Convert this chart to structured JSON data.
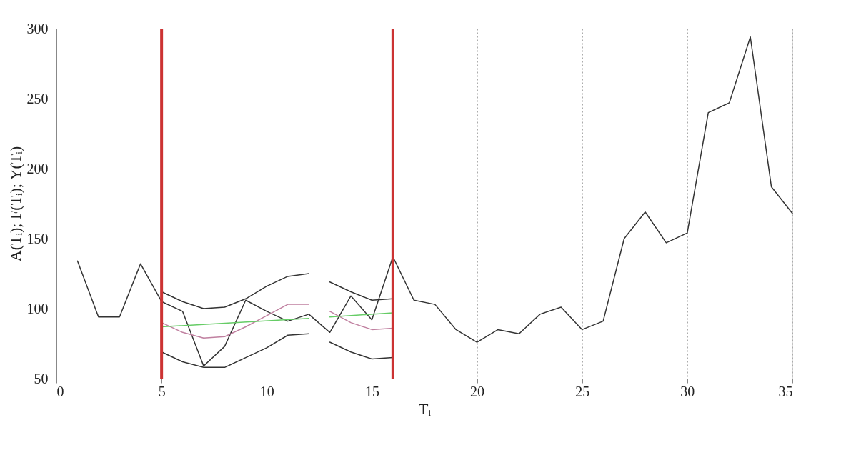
{
  "chart_data": {
    "type": "line",
    "xlabel": "Tᵢ",
    "ylabel": "A(Tᵢ); F(Tᵢ); Y(Tᵢ)",
    "xlim": [
      0,
      35
    ],
    "xticks": [
      0,
      5,
      10,
      15,
      20,
      25,
      30,
      35
    ],
    "ylim": [
      50,
      300
    ],
    "yticks": [
      50,
      100,
      150,
      200,
      250,
      300
    ],
    "grid": true,
    "legend": false,
    "marker": "none",
    "line_style": "solid",
    "series": [
      {
        "color": "#333333",
        "x": [
          1,
          2,
          3,
          4,
          5,
          6,
          7,
          8,
          9,
          10,
          11,
          12,
          13,
          14,
          15,
          16,
          17,
          18,
          19,
          20,
          21,
          22,
          23,
          24,
          25,
          26,
          27,
          28,
          29,
          30,
          31,
          32,
          33,
          34,
          35
        ],
        "values": [
          134,
          94,
          94,
          132,
          105,
          98,
          59,
          73,
          106,
          98,
          91,
          96,
          83,
          109,
          92,
          137,
          106,
          103,
          85,
          76,
          85,
          82,
          96,
          101,
          85,
          91,
          150,
          169,
          147,
          154,
          240,
          247,
          294,
          187,
          168
        ]
      },
      {
        "color": "#333333",
        "x": [
          5,
          6,
          7,
          8,
          9,
          10,
          11,
          12
        ],
        "values": [
          112,
          105,
          100,
          101,
          107,
          116,
          123,
          125
        ]
      },
      {
        "color": "#333333",
        "x": [
          5,
          6,
          7,
          8,
          9,
          10,
          11,
          12
        ],
        "values": [
          69,
          62,
          58,
          58,
          65,
          72,
          81,
          82
        ]
      },
      {
        "color": "#c080a0",
        "x": [
          5,
          6,
          7,
          8,
          9,
          10,
          11,
          12
        ],
        "values": [
          90,
          83,
          79,
          80,
          87,
          95,
          103,
          103
        ]
      },
      {
        "color": "#66cc66",
        "x": [
          5,
          12
        ],
        "values": [
          87,
          93
        ]
      },
      {
        "color": "#333333",
        "x": [
          13,
          14,
          15,
          16
        ],
        "values": [
          119,
          112,
          106,
          107
        ]
      },
      {
        "color": "#333333",
        "x": [
          13,
          14,
          15,
          16
        ],
        "values": [
          76,
          69,
          64,
          65
        ]
      },
      {
        "color": "#c080a0",
        "x": [
          13,
          14,
          15,
          16
        ],
        "values": [
          98,
          90,
          85,
          86
        ]
      },
      {
        "color": "#66cc66",
        "x": [
          13,
          16
        ],
        "values": [
          94,
          97
        ]
      }
    ],
    "ref_lines": [
      {
        "axis": "x",
        "value": 5,
        "color": "#cc3333"
      },
      {
        "axis": "x",
        "value": 16,
        "color": "#cc3333"
      }
    ]
  }
}
